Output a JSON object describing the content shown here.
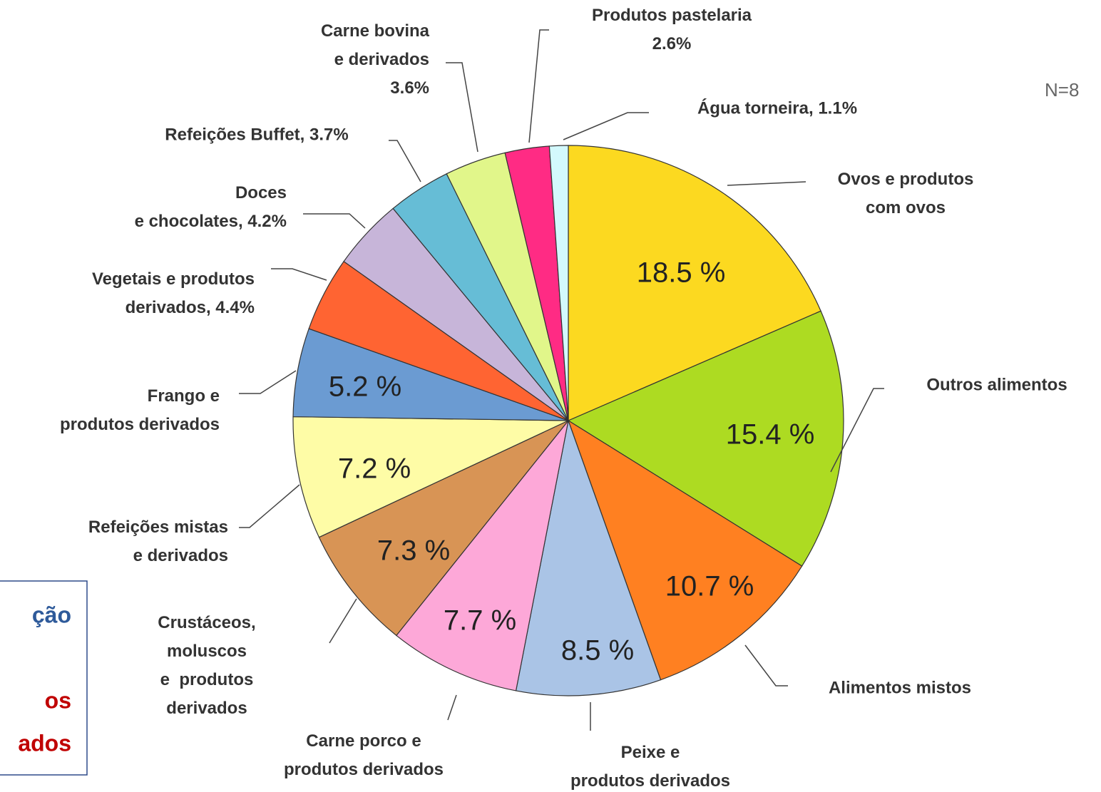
{
  "chart_data": {
    "type": "pie",
    "categories": [
      "Ovos e produtos\ncom ovos",
      "Outros alimentos",
      "Alimentos mistos",
      "Peixe e\nprodutos derivados",
      "Carne porco e\nprodutos derivados",
      "Crustáceos,\nmoluscos\ne  produtos\nderivados",
      "Refeições mistas\ne derivados",
      "Frango e\nprodutos derivados",
      "Vegetais e produtos\nderivados, 4.4%",
      "Doces\ne chocolates, 4.2%",
      "Refeições Buffet, 3.7%",
      "Carne bovina\ne derivados\n3.6%",
      "Produtos pastelaria\n2.6%",
      "Água torneira, 1.1%"
    ],
    "values": [
      18.5,
      15.4,
      10.7,
      8.5,
      7.7,
      7.3,
      7.2,
      5.2,
      4.4,
      4.2,
      3.7,
      3.6,
      2.6,
      1.1
    ],
    "value_labels": [
      "18.5 %",
      "15.4 %",
      "10.7 %",
      "8.5 %",
      "7.7 %",
      "7.3 %",
      "7.2 %",
      "5.2 %",
      null,
      null,
      null,
      null,
      null,
      null
    ],
    "colors": [
      "#fcd920",
      "#addb22",
      "#ff8021",
      "#aac4e6",
      "#fda8d8",
      "#d89455",
      "#fefca6",
      "#6b9bd2",
      "#ff6432",
      "#c7b5d9",
      "#66bdd6",
      "#e1f68a",
      "#ff2b84",
      "#d3f9fd"
    ],
    "annotations": [
      "N=8",
      "ção",
      "os",
      "ados"
    ]
  }
}
